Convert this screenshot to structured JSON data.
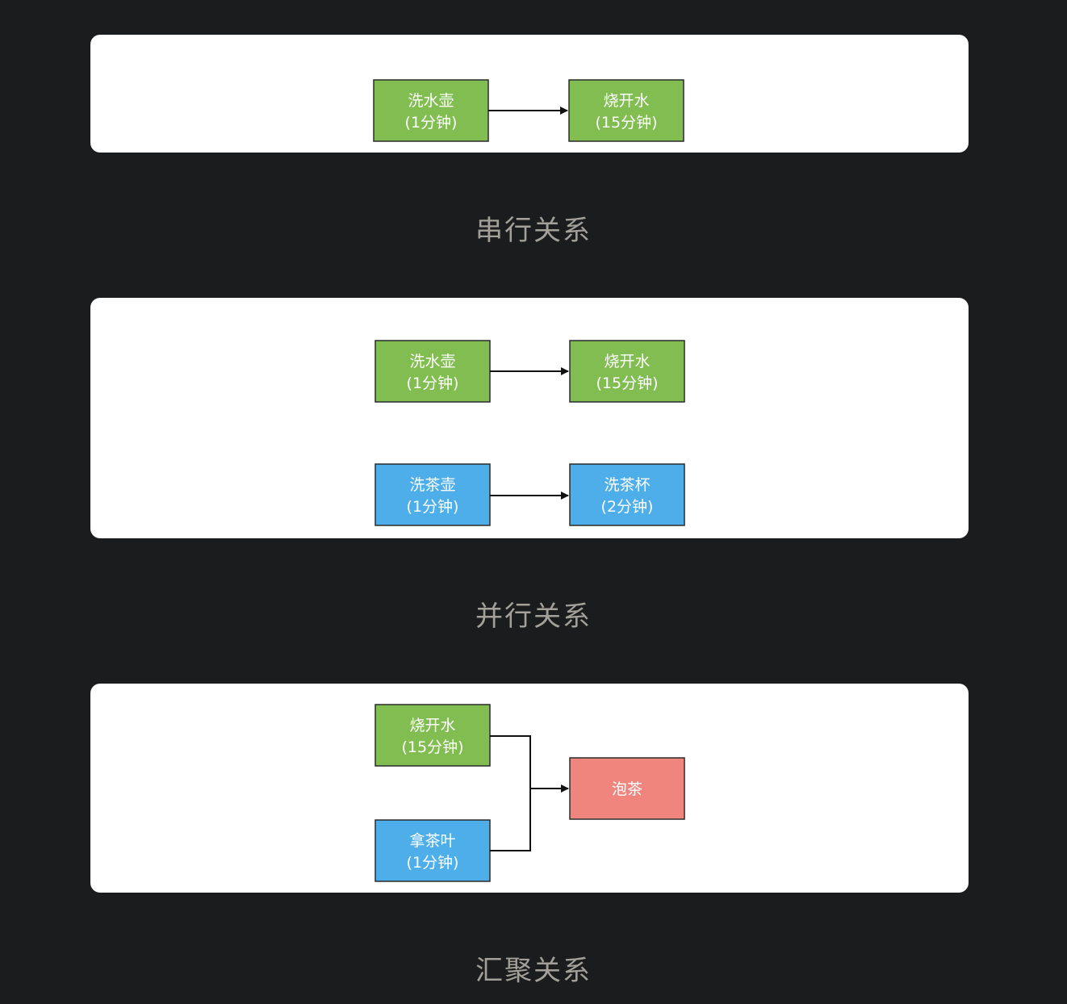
{
  "colors": {
    "green": "#82bd52",
    "blue": "#4daeea",
    "red": "#ef857d",
    "border": "#2b2b2b",
    "caption": "#a3a09a",
    "background": "#1b1c1e"
  },
  "sections": [
    {
      "caption": "串行关系",
      "nodes": [
        {
          "line1": "洗水壶",
          "line2": "(1分钟)"
        },
        {
          "line1": "烧开水",
          "line2": "(15分钟)"
        }
      ]
    },
    {
      "caption": "并行关系",
      "nodes": [
        {
          "line1": "洗水壶",
          "line2": "(1分钟)"
        },
        {
          "line1": "烧开水",
          "line2": "(15分钟)"
        },
        {
          "line1": "洗茶壶",
          "line2": "(1分钟)"
        },
        {
          "line1": "洗茶杯",
          "line2": "(2分钟)"
        }
      ]
    },
    {
      "caption": "汇聚关系",
      "nodes": [
        {
          "line1": "烧开水",
          "line2": "(15分钟)"
        },
        {
          "line1": "拿茶叶",
          "line2": "(1分钟)"
        },
        {
          "line1": "泡茶"
        }
      ]
    }
  ]
}
